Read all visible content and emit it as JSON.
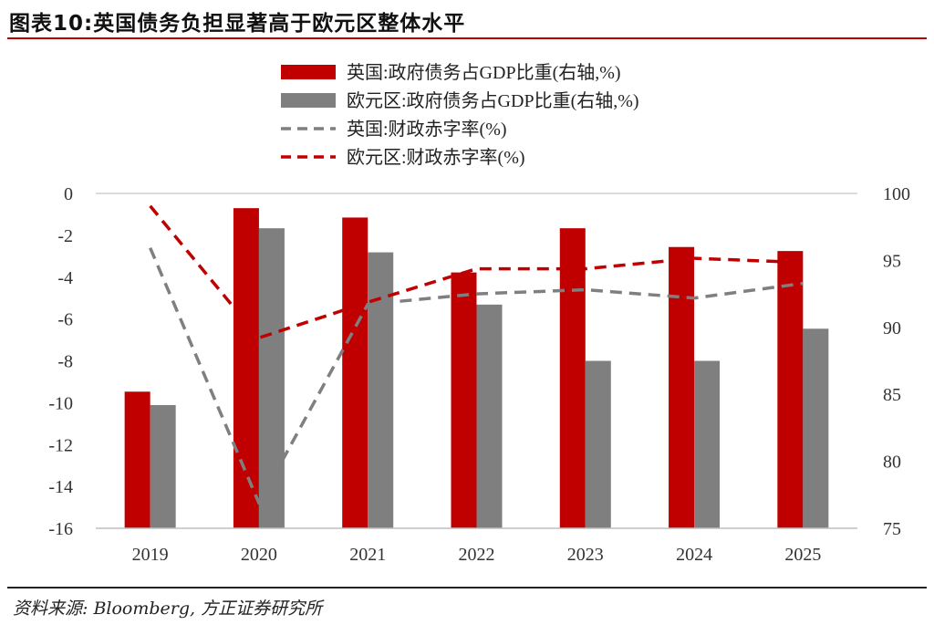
{
  "title": "图表10:英国债务负担显著高于欧元区整体水平",
  "source": "资料来源: Bloomberg, 方正证券研究所",
  "chart_data": {
    "type": "bar+line",
    "categories": [
      "2019",
      "2020",
      "2021",
      "2022",
      "2023",
      "2024",
      "2025"
    ],
    "bars": [
      {
        "name": "英国:政府债务占GDP比重(右轴,%)",
        "color": "#c00000",
        "axis": "right",
        "values": [
          85.2,
          98.9,
          98.2,
          94.1,
          97.4,
          96.0,
          95.7
        ]
      },
      {
        "name": "欧元区:政府债务占GDP比重(右轴,%)",
        "color": "#7f7f7f",
        "axis": "right",
        "values": [
          84.2,
          97.4,
          95.6,
          91.7,
          87.5,
          87.5,
          89.9
        ]
      }
    ],
    "lines": [
      {
        "name": "英国:财政赤字率(%)",
        "color": "#7f7f7f",
        "dash": true,
        "axis": "left",
        "values": [
          -2.6,
          -14.8,
          -5.3,
          -4.8,
          -4.6,
          -5.0,
          -4.3
        ]
      },
      {
        "name": "欧元区:财政赤字率(%)",
        "color": "#c00000",
        "dash": true,
        "axis": "left",
        "values": [
          -0.6,
          -6.9,
          -5.2,
          -3.6,
          -3.6,
          -3.1,
          -3.3
        ]
      }
    ],
    "left_axis": {
      "min": -16,
      "max": 0,
      "ticks": [
        "0",
        "-2",
        "-4",
        "-6",
        "-8",
        "-10",
        "-12",
        "-14",
        "-16"
      ]
    },
    "right_axis": {
      "min": 75,
      "max": 100,
      "ticks": [
        "100",
        "95",
        "90",
        "85",
        "80",
        "75"
      ]
    },
    "legend_position": "top-center",
    "grid": false
  }
}
